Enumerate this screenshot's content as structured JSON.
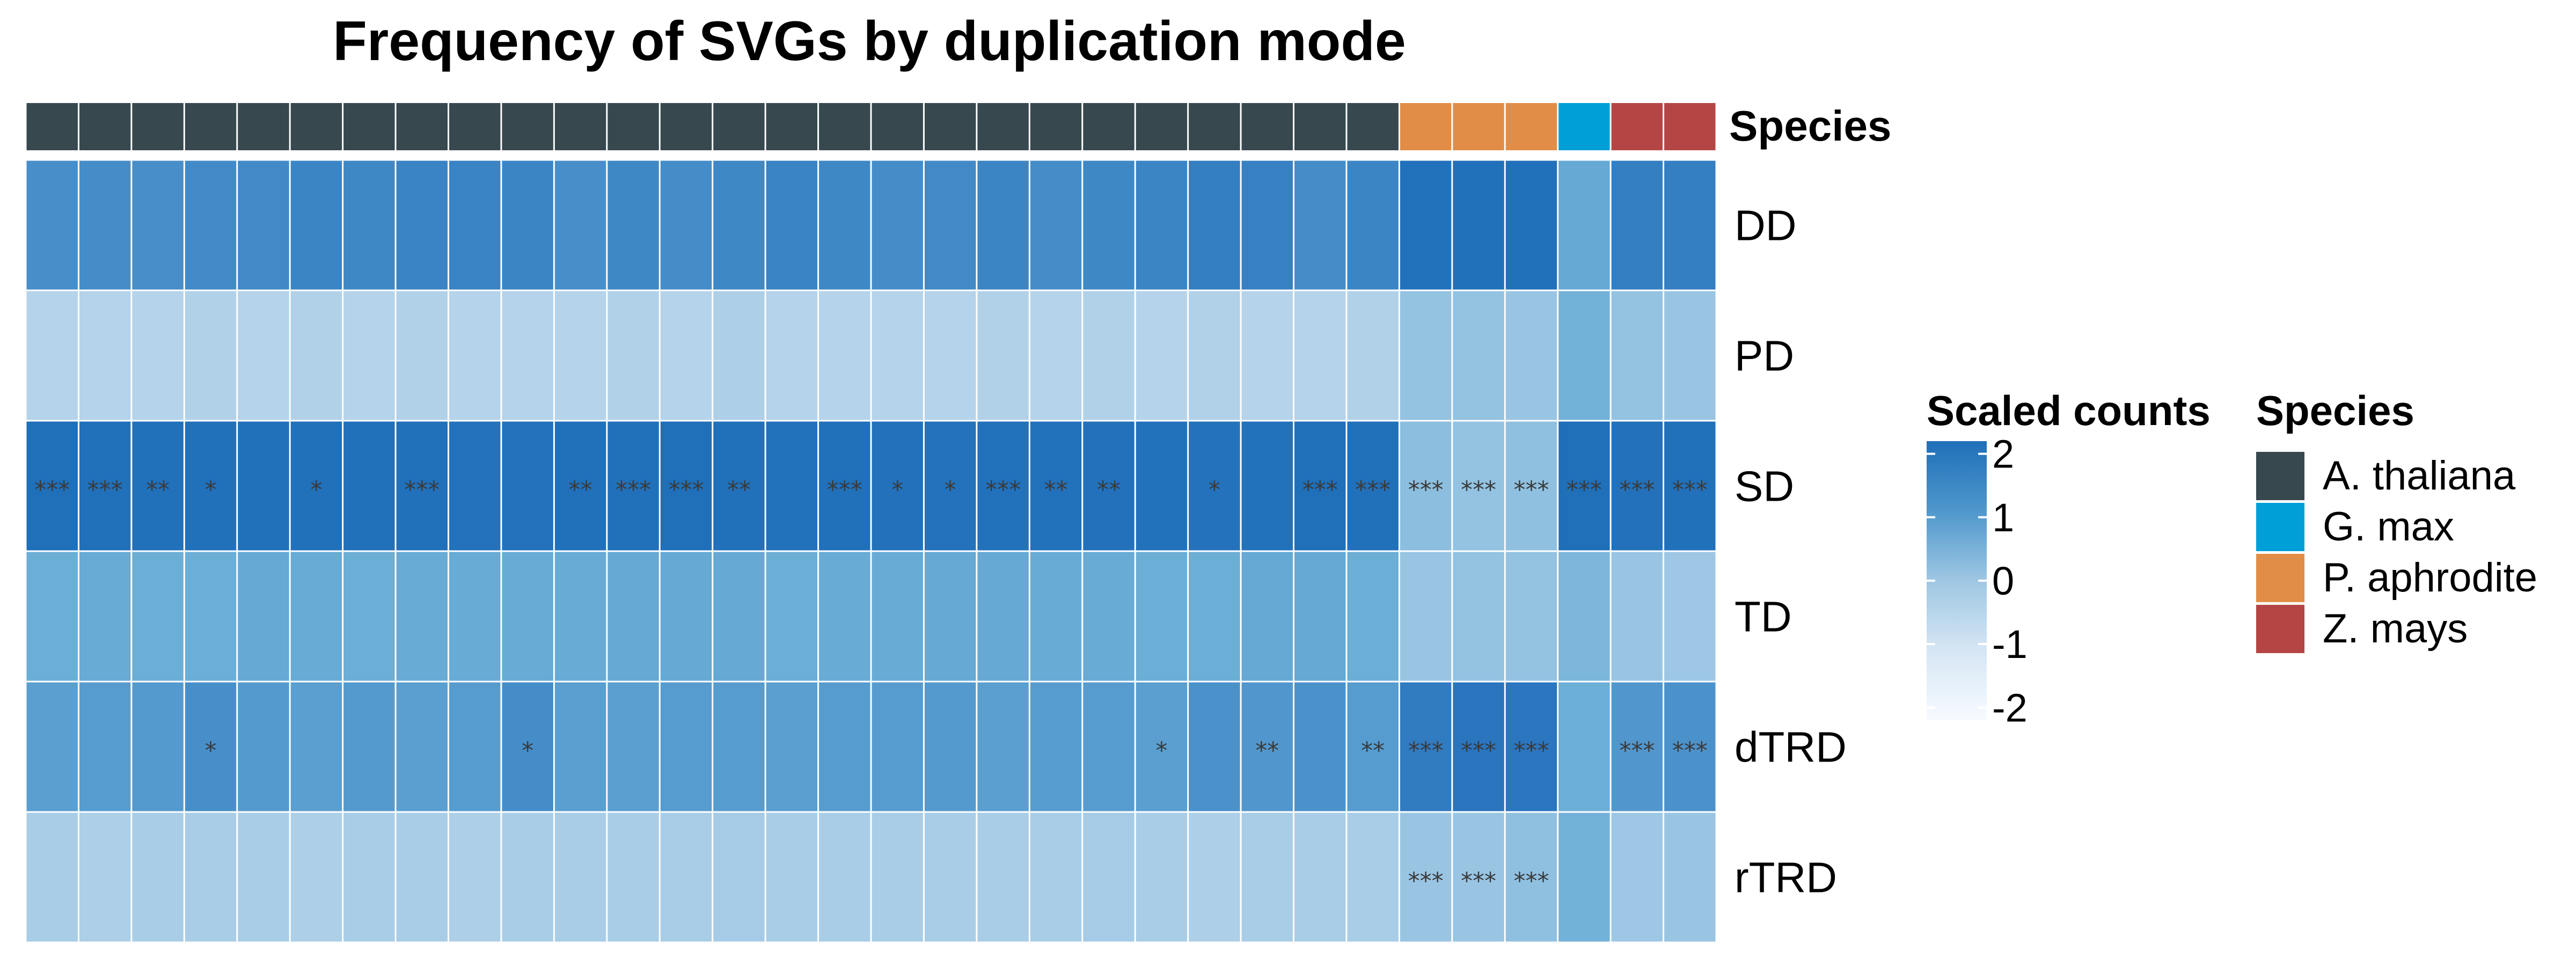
{
  "chart_data": {
    "type": "heatmap",
    "title": "Frequency of SVGs by duplication mode",
    "annotation": {
      "name": "Species",
      "values": [
        "A. thaliana",
        "A. thaliana",
        "A. thaliana",
        "A. thaliana",
        "A. thaliana",
        "A. thaliana",
        "A. thaliana",
        "A. thaliana",
        "A. thaliana",
        "A. thaliana",
        "A. thaliana",
        "A. thaliana",
        "A. thaliana",
        "A. thaliana",
        "A. thaliana",
        "A. thaliana",
        "A. thaliana",
        "A. thaliana",
        "A. thaliana",
        "A. thaliana",
        "A. thaliana",
        "A. thaliana",
        "A. thaliana",
        "A. thaliana",
        "A. thaliana",
        "A. thaliana",
        "P. aphrodite",
        "P. aphrodite",
        "P. aphrodite",
        "G. max",
        "Z. mays",
        "Z. mays"
      ]
    },
    "rows": [
      "DD",
      "PD",
      "SD",
      "TD",
      "dTRD",
      "rTRD"
    ],
    "values": [
      [
        0.6,
        0.65,
        0.6,
        0.7,
        0.7,
        0.8,
        0.75,
        0.85,
        0.85,
        0.8,
        0.6,
        0.75,
        0.65,
        0.75,
        0.85,
        0.75,
        0.65,
        0.7,
        0.8,
        0.65,
        0.75,
        0.8,
        0.95,
        0.9,
        0.65,
        0.8,
        1.9,
        2.0,
        2.0,
        0.1,
        0.95,
        0.95
      ],
      [
        -0.9,
        -0.9,
        -0.9,
        -0.85,
        -0.9,
        -0.85,
        -0.9,
        -0.85,
        -0.9,
        -0.9,
        -0.9,
        -0.85,
        -0.9,
        -0.8,
        -0.9,
        -0.9,
        -0.9,
        -0.9,
        -0.85,
        -0.9,
        -0.85,
        -0.9,
        -0.85,
        -0.9,
        -0.9,
        -0.85,
        -0.5,
        -0.5,
        -0.55,
        -0.1,
        -0.5,
        -0.55
      ],
      [
        2.2,
        2.1,
        2.0,
        2.0,
        2.0,
        2.0,
        2.0,
        2.0,
        1.8,
        1.8,
        2.05,
        2.05,
        2.15,
        2.05,
        1.9,
        2.1,
        1.95,
        1.8,
        1.9,
        1.9,
        1.85,
        1.9,
        1.75,
        1.9,
        2.2,
        2.0,
        -0.4,
        -0.5,
        -0.45,
        2.4,
        1.85,
        2.05
      ],
      [
        0.0,
        0.05,
        0.0,
        0.0,
        0.1,
        0.05,
        0.0,
        0.05,
        0.05,
        0.05,
        0.05,
        0.1,
        0.1,
        0.1,
        0.0,
        0.05,
        0.05,
        0.1,
        0.1,
        0.05,
        0.05,
        0.0,
        0.0,
        0.1,
        0.1,
        0.0,
        -0.55,
        -0.5,
        -0.5,
        -0.2,
        -0.55,
        -0.6
      ],
      [
        0.3,
        0.35,
        0.4,
        0.6,
        0.4,
        0.3,
        0.4,
        0.3,
        0.35,
        0.65,
        0.3,
        0.3,
        0.35,
        0.35,
        0.3,
        0.35,
        0.35,
        0.4,
        0.3,
        0.35,
        0.35,
        0.3,
        0.55,
        0.45,
        0.55,
        0.35,
        1.0,
        1.2,
        1.1,
        0.0,
        0.45,
        0.55
      ],
      [
        -0.75,
        -0.8,
        -0.75,
        -0.75,
        -0.75,
        -0.8,
        -0.75,
        -0.75,
        -0.8,
        -0.75,
        -0.75,
        -0.75,
        -0.75,
        -0.7,
        -0.75,
        -0.75,
        -0.75,
        -0.75,
        -0.75,
        -0.75,
        -0.7,
        -0.75,
        -0.8,
        -0.75,
        -0.75,
        -0.75,
        -0.55,
        -0.55,
        -0.45,
        -0.1,
        -0.6,
        -0.55
      ]
    ],
    "significance": [
      [
        "",
        "",
        "",
        "",
        "",
        "",
        "",
        "",
        "",
        "",
        "",
        "",
        "",
        "",
        "",
        "",
        "",
        "",
        "",
        "",
        "",
        "",
        "",
        "",
        "",
        "",
        "",
        "",
        "",
        "",
        "",
        ""
      ],
      [
        "",
        "",
        "",
        "",
        "",
        "",
        "",
        "",
        "",
        "",
        "",
        "",
        "",
        "",
        "",
        "",
        "",
        "",
        "",
        "",
        "",
        "",
        "",
        "",
        "",
        "",
        "",
        "",
        "",
        "",
        "",
        ""
      ],
      [
        "***",
        "***",
        "**",
        "*",
        "",
        "*",
        "",
        "***",
        "",
        "",
        "**",
        "***",
        "***",
        "**",
        "",
        "***",
        "*",
        "*",
        "***",
        "**",
        "**",
        "",
        "*",
        "",
        "***",
        "***",
        "***",
        "***",
        "***",
        "***",
        "***",
        "***"
      ],
      [
        "",
        "",
        "",
        "",
        "",
        "",
        "",
        "",
        "",
        "",
        "",
        "",
        "",
        "",
        "",
        "",
        "",
        "",
        "",
        "",
        "",
        "",
        "",
        "",
        "",
        "",
        "",
        "",
        "",
        "",
        "",
        ""
      ],
      [
        "",
        "",
        "",
        "*",
        "",
        "",
        "",
        "",
        "",
        "*",
        "",
        "",
        "",
        "",
        "",
        "",
        "",
        "",
        "",
        "",
        "",
        "*",
        "",
        "**",
        "",
        "**",
        "***",
        "***",
        "***",
        "",
        "***",
        "***"
      ],
      [
        "",
        "",
        "",
        "",
        "",
        "",
        "",
        "",
        "",
        "",
        "",
        "",
        "",
        "",
        "",
        "",
        "",
        "",
        "",
        "",
        "",
        "",
        "",
        "",
        "",
        "",
        "***",
        "***",
        "***",
        "",
        "",
        ""
      ]
    ],
    "color_scale": {
      "title": "Scaled counts",
      "range": [
        -2.2,
        2.2
      ],
      "ticks": [
        2,
        1,
        0,
        -1,
        -2
      ],
      "colors": [
        "#f7fbff",
        "#c6dbef",
        "#6baed6",
        "#2b76bf",
        "#1f6fb9"
      ]
    },
    "species_legend": {
      "title": "Species",
      "items": [
        {
          "label": "A. thaliana",
          "color": "#37484f"
        },
        {
          "label": "G. max",
          "color": "#009fd8"
        },
        {
          "label": "P. aphrodite",
          "color": "#e28d47"
        },
        {
          "label": "Z. mays",
          "color": "#b54545"
        }
      ]
    }
  }
}
